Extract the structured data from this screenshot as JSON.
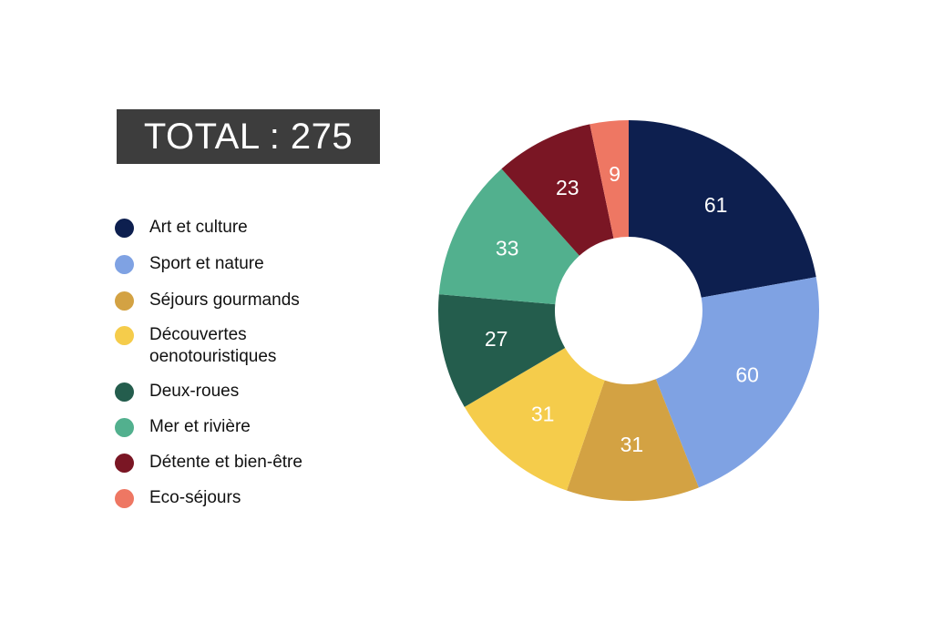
{
  "total": {
    "label": "TOTAL : 275"
  },
  "legend": [
    {
      "label": "Art et culture",
      "color": "#0d1f4f"
    },
    {
      "label": "Sport et nature",
      "color": "#7fa2e3"
    },
    {
      "label": "Séjours gourmands",
      "color": "#d3a243"
    },
    {
      "label": "Découvertes oenotouristiques",
      "label_line1": "Découvertes",
      "label_line2": "oenotouristiques",
      "color": "#f5cc4b"
    },
    {
      "label": "Deux-roues",
      "color": "#245d4d"
    },
    {
      "label": "Mer et rivière",
      "color": "#52b08e"
    },
    {
      "label": "Détente et bien-être",
      "color": "#7a1624"
    },
    {
      "label": "Eco-séjours",
      "color": "#ee7763"
    }
  ],
  "chart_data": {
    "type": "pie",
    "subtype": "donut",
    "title": "TOTAL : 275",
    "total": 275,
    "categories": [
      "Art et culture",
      "Sport et nature",
      "Séjours gourmands",
      "Découvertes oenotouristiques",
      "Deux-roues",
      "Mer et rivière",
      "Détente et bien-être",
      "Eco-séjours"
    ],
    "values": [
      61,
      60,
      31,
      31,
      27,
      33,
      23,
      9
    ],
    "colors": [
      "#0d1f4f",
      "#7fa2e3",
      "#d3a243",
      "#f5cc4b",
      "#245d4d",
      "#52b08e",
      "#7a1624",
      "#ee7763"
    ],
    "data_labels": [
      "61",
      "60",
      "31",
      "31",
      "27",
      "33",
      "23",
      "9"
    ],
    "legend_position": "left",
    "start_angle": "12 o'clock, clockwise"
  }
}
